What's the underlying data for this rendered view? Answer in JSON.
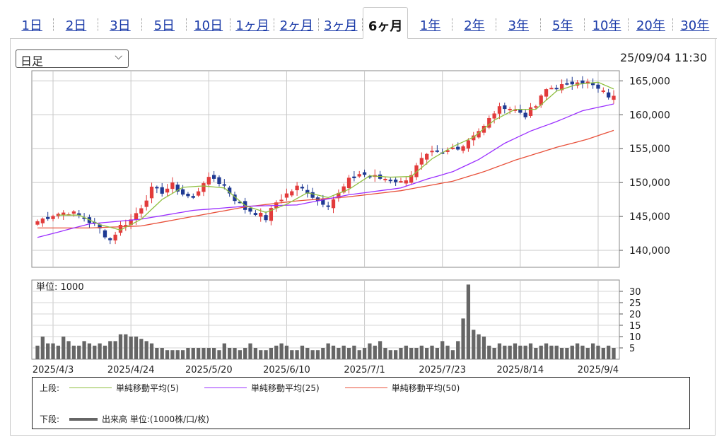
{
  "tabs": [
    {
      "label": "1日",
      "active": false
    },
    {
      "label": "2日",
      "active": false
    },
    {
      "label": "3日",
      "active": false
    },
    {
      "label": "5日",
      "active": false
    },
    {
      "label": "10日",
      "active": false
    },
    {
      "label": "1ヶ月",
      "active": false
    },
    {
      "label": "2ヶ月",
      "active": false
    },
    {
      "label": "3ヶ月",
      "active": false
    },
    {
      "label": "6ヶ月",
      "active": true
    },
    {
      "label": "1年",
      "active": false
    },
    {
      "label": "2年",
      "active": false
    },
    {
      "label": "3年",
      "active": false
    },
    {
      "label": "5年",
      "active": false
    },
    {
      "label": "10年",
      "active": false
    },
    {
      "label": "20年",
      "active": false
    },
    {
      "label": "30年",
      "active": false
    }
  ],
  "period_select": {
    "value": "日足"
  },
  "timestamp": "25/09/04 11:30",
  "colors": {
    "up": "#e23b3b",
    "down": "#1f3a93",
    "ma5": "#8fbf3f",
    "ma25": "#9b30ff",
    "ma50": "#e8503a",
    "volume": "#666666"
  },
  "chart_data": [
    {
      "type": "candlestick",
      "y_ticks": [
        "165,000",
        "160,000",
        "155,000",
        "150,000",
        "145,000",
        "140,000"
      ],
      "y_tick_values": [
        165000,
        160000,
        155000,
        150000,
        145000,
        140000
      ],
      "ylim": [
        137500,
        166500
      ],
      "x_tick_labels": [
        "2025/4/3",
        "2025/4/24",
        "2025/5/20",
        "2025/6/10",
        "2025/7/1",
        "2025/7/23",
        "2025/8/14",
        "2025/9/4"
      ],
      "x_tick_index": [
        3,
        18,
        33,
        48,
        63,
        78,
        93,
        108
      ],
      "n_sessions": 112,
      "grid": true,
      "close_keypoints": [
        [
          0,
          144300
        ],
        [
          3,
          145300
        ],
        [
          6,
          145700
        ],
        [
          9,
          144800
        ],
        [
          12,
          143100
        ],
        [
          14,
          141500
        ],
        [
          16,
          143600
        ],
        [
          18,
          144500
        ],
        [
          20,
          146500
        ],
        [
          22,
          149000
        ],
        [
          24,
          148700
        ],
        [
          26,
          149600
        ],
        [
          28,
          148300
        ],
        [
          30,
          147600
        ],
        [
          32,
          150200
        ],
        [
          34,
          150600
        ],
        [
          36,
          149500
        ],
        [
          38,
          147600
        ],
        [
          40,
          146100
        ],
        [
          42,
          145600
        ],
        [
          44,
          144700
        ],
        [
          46,
          147100
        ],
        [
          48,
          148300
        ],
        [
          50,
          149300
        ],
        [
          52,
          148700
        ],
        [
          54,
          147300
        ],
        [
          56,
          146900
        ],
        [
          58,
          148300
        ],
        [
          60,
          150300
        ],
        [
          62,
          151300
        ],
        [
          64,
          151000
        ],
        [
          66,
          150600
        ],
        [
          68,
          150600
        ],
        [
          70,
          150000
        ],
        [
          72,
          151300
        ],
        [
          74,
          153300
        ],
        [
          76,
          154300
        ],
        [
          78,
          154200
        ],
        [
          80,
          155100
        ],
        [
          82,
          155500
        ],
        [
          84,
          157200
        ],
        [
          86,
          158200
        ],
        [
          88,
          160400
        ],
        [
          90,
          161300
        ],
        [
          92,
          160700
        ],
        [
          94,
          160000
        ],
        [
          96,
          161300
        ],
        [
          98,
          163700
        ],
        [
          100,
          164300
        ],
        [
          102,
          164200
        ],
        [
          104,
          165200
        ],
        [
          106,
          164700
        ],
        [
          108,
          163700
        ],
        [
          110,
          162800
        ],
        [
          111,
          162500
        ]
      ],
      "ma5_keypoints": [
        [
          4,
          145200
        ],
        [
          8,
          145200
        ],
        [
          12,
          143800
        ],
        [
          16,
          143000
        ],
        [
          20,
          144600
        ],
        [
          24,
          147500
        ],
        [
          28,
          149300
        ],
        [
          32,
          149500
        ],
        [
          36,
          149200
        ],
        [
          40,
          146600
        ],
        [
          44,
          145600
        ],
        [
          48,
          146800
        ],
        [
          52,
          148500
        ],
        [
          56,
          147800
        ],
        [
          60,
          149000
        ],
        [
          64,
          151000
        ],
        [
          68,
          150800
        ],
        [
          72,
          150900
        ],
        [
          76,
          153500
        ],
        [
          80,
          155300
        ],
        [
          84,
          156700
        ],
        [
          88,
          159200
        ],
        [
          92,
          160800
        ],
        [
          96,
          160800
        ],
        [
          100,
          163500
        ],
        [
          104,
          164500
        ],
        [
          108,
          164800
        ],
        [
          111,
          163800
        ]
      ],
      "ma25_keypoints": [
        [
          0,
          141900
        ],
        [
          10,
          143900
        ],
        [
          20,
          144600
        ],
        [
          30,
          145900
        ],
        [
          40,
          146500
        ],
        [
          50,
          146700
        ],
        [
          60,
          148200
        ],
        [
          70,
          149200
        ],
        [
          75,
          150500
        ],
        [
          80,
          151600
        ],
        [
          85,
          153400
        ],
        [
          90,
          155800
        ],
        [
          95,
          157600
        ],
        [
          100,
          159000
        ],
        [
          105,
          160600
        ],
        [
          111,
          161600
        ]
      ],
      "ma50_keypoints": [
        [
          0,
          143300
        ],
        [
          10,
          143300
        ],
        [
          20,
          143600
        ],
        [
          30,
          145000
        ],
        [
          40,
          146400
        ],
        [
          50,
          147300
        ],
        [
          60,
          147900
        ],
        [
          70,
          148800
        ],
        [
          80,
          150200
        ],
        [
          86,
          151600
        ],
        [
          92,
          153300
        ],
        [
          100,
          155200
        ],
        [
          106,
          156400
        ],
        [
          111,
          157700
        ]
      ],
      "legend": [
        {
          "label": "単純移動平均(5)",
          "color_key": "ma5"
        },
        {
          "label": "単純移動平均(25)",
          "color_key": "ma25"
        },
        {
          "label": "単純移動平均(50)",
          "color_key": "ma50"
        }
      ]
    },
    {
      "type": "bar",
      "title": "単位: 1000",
      "y_ticks": [
        "30",
        "25",
        "20",
        "15",
        "10",
        "5"
      ],
      "y_tick_values": [
        30,
        25,
        20,
        15,
        10,
        5
      ],
      "ylim": [
        0,
        35
      ],
      "n_sessions": 112,
      "values": [
        6,
        10,
        7,
        7,
        6,
        10,
        8,
        6,
        6,
        8,
        7,
        6,
        7,
        6,
        8,
        8,
        11,
        11,
        10,
        10,
        9,
        8,
        7,
        5,
        5,
        4,
        4,
        4,
        4,
        5,
        5,
        5,
        5,
        5,
        5,
        4,
        7,
        5,
        5,
        4,
        5,
        7,
        5,
        4,
        4,
        5,
        6,
        7,
        6,
        4,
        4,
        6,
        5,
        4,
        4,
        5,
        7,
        6,
        5,
        6,
        5,
        6,
        4,
        5,
        7,
        6,
        8,
        5,
        4,
        4,
        5,
        6,
        5,
        5,
        6,
        5,
        6,
        5,
        8,
        6,
        4,
        8,
        18,
        33,
        13,
        11,
        10,
        6,
        5,
        7,
        6,
        6,
        7,
        6,
        6,
        7,
        5,
        6,
        7,
        6,
        6,
        5,
        5,
        6,
        7,
        6,
        5,
        7,
        6,
        5,
        6,
        5
      ],
      "legend": {
        "label": "出来高 単位:(1000株/口/枚)",
        "color_key": "volume"
      }
    }
  ],
  "legend_labels": {
    "upper": "上段:",
    "lower": "下段:"
  }
}
